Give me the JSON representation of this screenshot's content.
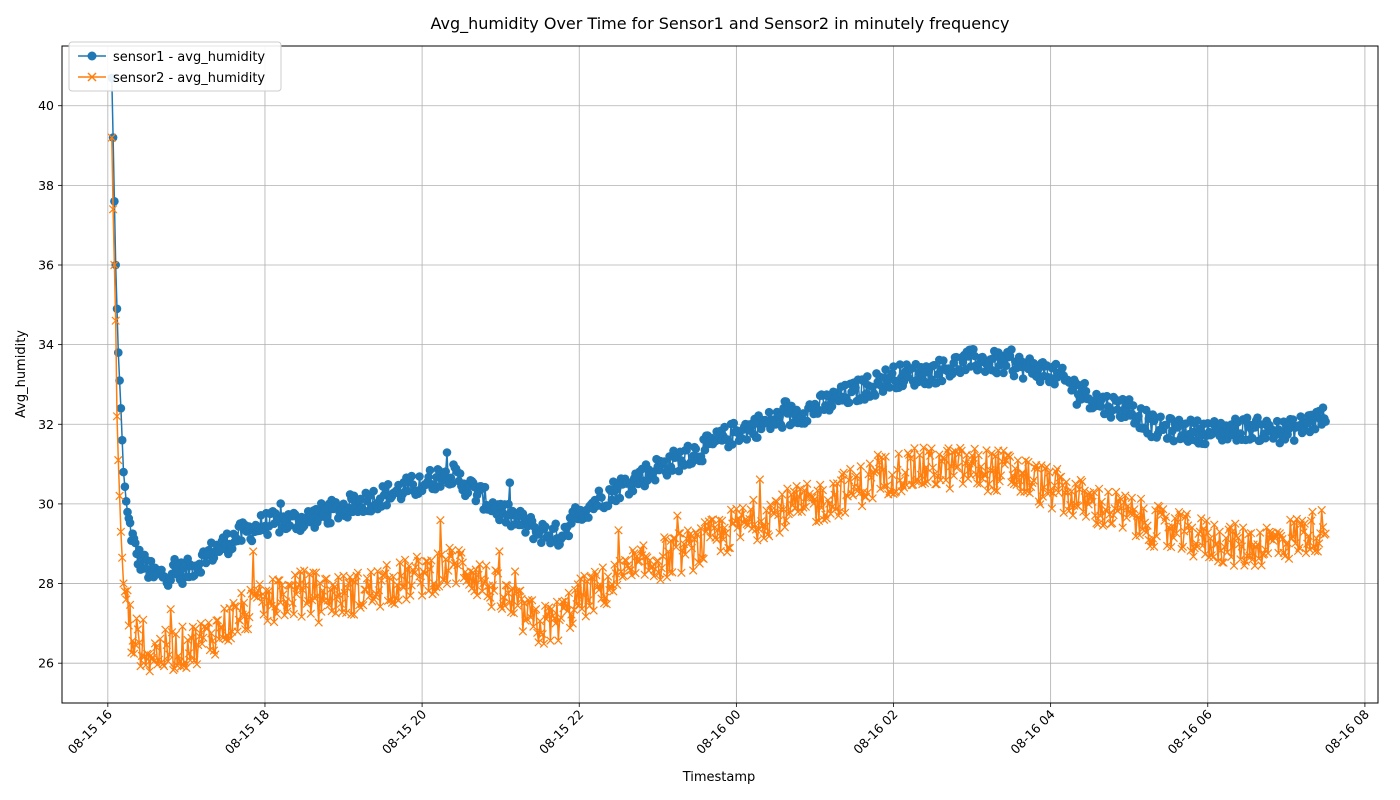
{
  "chart_data": {
    "type": "line",
    "title": "Avg_humidity Over Time for Sensor1 and Sensor2 in minutely frequency",
    "xlabel": "Timestamp",
    "ylabel": "Avg_humidity",
    "xlim": [
      "2024-08-15 15:25",
      "2024-08-16 08:10"
    ],
    "ylim": [
      25,
      41.5
    ],
    "xticks": [
      "08-15 16",
      "08-15 18",
      "08-15 20",
      "08-15 22",
      "08-16 00",
      "08-16 02",
      "08-16 04",
      "08-16 06",
      "08-16 08"
    ],
    "yticks": [
      26,
      28,
      30,
      32,
      34,
      36,
      38,
      40
    ],
    "grid": true,
    "legend_position": "top-left",
    "x_start": "2024-08-15 16:00",
    "x_end": "2024-08-16 07:30",
    "series": [
      {
        "name": "sensor1 - avg_humidity",
        "color": "#1f77b4",
        "marker": "circle",
        "anchors": [
          [
            "2024-08-15 16:03",
            40.7
          ],
          [
            "2024-08-15 16:04",
            39.2
          ],
          [
            "2024-08-15 16:06",
            36.0
          ],
          [
            "2024-08-15 16:08",
            33.8
          ],
          [
            "2024-08-15 16:10",
            32.4
          ],
          [
            "2024-08-15 16:12",
            30.8
          ],
          [
            "2024-08-15 16:15",
            29.7
          ],
          [
            "2024-08-15 16:22",
            28.7
          ],
          [
            "2024-08-15 16:35",
            28.2
          ],
          [
            "2024-08-15 17:00",
            28.3
          ],
          [
            "2024-08-15 17:20",
            28.8
          ],
          [
            "2024-08-15 17:40",
            29.2
          ],
          [
            "2024-08-15 18:00",
            29.5
          ],
          [
            "2024-08-15 18:30",
            29.6
          ],
          [
            "2024-08-15 19:00",
            29.9
          ],
          [
            "2024-08-15 19:30",
            30.2
          ],
          [
            "2024-08-15 20:00",
            30.5
          ],
          [
            "2024-08-15 20:20",
            30.8
          ],
          [
            "2024-08-15 20:45",
            30.2
          ],
          [
            "2024-08-15 21:00",
            29.8
          ],
          [
            "2024-08-15 21:30",
            29.3
          ],
          [
            "2024-08-15 21:45",
            29.2
          ],
          [
            "2024-08-15 22:00",
            29.8
          ],
          [
            "2024-08-15 22:30",
            30.4
          ],
          [
            "2024-08-15 23:00",
            30.9
          ],
          [
            "2024-08-15 23:30",
            31.3
          ],
          [
            "2024-08-16 00:00",
            31.8
          ],
          [
            "2024-08-16 00:30",
            32.1
          ],
          [
            "2024-08-16 01:00",
            32.4
          ],
          [
            "2024-08-16 01:30",
            32.8
          ],
          [
            "2024-08-16 02:00",
            33.2
          ],
          [
            "2024-08-16 02:30",
            33.3
          ],
          [
            "2024-08-16 03:00",
            33.6
          ],
          [
            "2024-08-16 03:30",
            33.5
          ],
          [
            "2024-08-16 04:00",
            33.3
          ],
          [
            "2024-08-16 04:20",
            32.9
          ],
          [
            "2024-08-16 04:40",
            32.5
          ],
          [
            "2024-08-16 05:00",
            32.4
          ],
          [
            "2024-08-16 05:20",
            31.9
          ],
          [
            "2024-08-16 06:00",
            31.8
          ],
          [
            "2024-08-16 06:30",
            31.9
          ],
          [
            "2024-08-16 07:00",
            31.8
          ],
          [
            "2024-08-16 07:30",
            32.2
          ]
        ],
        "noise": 0.3
      },
      {
        "name": "sensor2 - avg_humidity",
        "color": "#ff7f0e",
        "marker": "x",
        "anchors": [
          [
            "2024-08-15 16:03",
            39.2
          ],
          [
            "2024-08-15 16:04",
            37.4
          ],
          [
            "2024-08-15 16:06",
            34.6
          ],
          [
            "2024-08-15 16:07",
            32.2
          ],
          [
            "2024-08-15 16:08",
            31.1
          ],
          [
            "2024-08-15 16:10",
            29.3
          ],
          [
            "2024-08-15 16:12",
            28.0
          ],
          [
            "2024-08-15 16:18",
            26.8
          ],
          [
            "2024-08-15 16:30",
            26.2
          ],
          [
            "2024-08-15 17:00",
            26.4
          ],
          [
            "2024-08-15 17:20",
            26.7
          ],
          [
            "2024-08-15 17:40",
            27.2
          ],
          [
            "2024-08-15 18:00",
            27.5
          ],
          [
            "2024-08-15 18:30",
            27.8
          ],
          [
            "2024-08-15 19:00",
            27.7
          ],
          [
            "2024-08-15 19:30",
            27.9
          ],
          [
            "2024-08-15 20:00",
            28.2
          ],
          [
            "2024-08-15 20:30",
            28.5
          ],
          [
            "2024-08-15 21:00",
            27.7
          ],
          [
            "2024-08-15 21:30",
            26.9
          ],
          [
            "2024-08-15 21:45",
            27.1
          ],
          [
            "2024-08-15 22:00",
            27.6
          ],
          [
            "2024-08-15 22:30",
            28.1
          ],
          [
            "2024-08-15 23:00",
            28.6
          ],
          [
            "2024-08-15 23:30",
            28.9
          ],
          [
            "2024-08-16 00:00",
            29.4
          ],
          [
            "2024-08-16 00:30",
            29.8
          ],
          [
            "2024-08-16 01:00",
            30.0
          ],
          [
            "2024-08-16 01:30",
            30.4
          ],
          [
            "2024-08-16 02:00",
            30.8
          ],
          [
            "2024-08-16 02:30",
            30.9
          ],
          [
            "2024-08-16 03:00",
            30.9
          ],
          [
            "2024-08-16 03:30",
            30.8
          ],
          [
            "2024-08-16 04:00",
            30.4
          ],
          [
            "2024-08-16 04:30",
            30.0
          ],
          [
            "2024-08-16 05:00",
            29.7
          ],
          [
            "2024-08-16 05:30",
            29.3
          ],
          [
            "2024-08-16 06:00",
            29.1
          ],
          [
            "2024-08-16 06:30",
            28.9
          ],
          [
            "2024-08-16 07:00",
            29.1
          ],
          [
            "2024-08-16 07:30",
            29.4
          ]
        ],
        "noise": 0.55
      }
    ]
  }
}
